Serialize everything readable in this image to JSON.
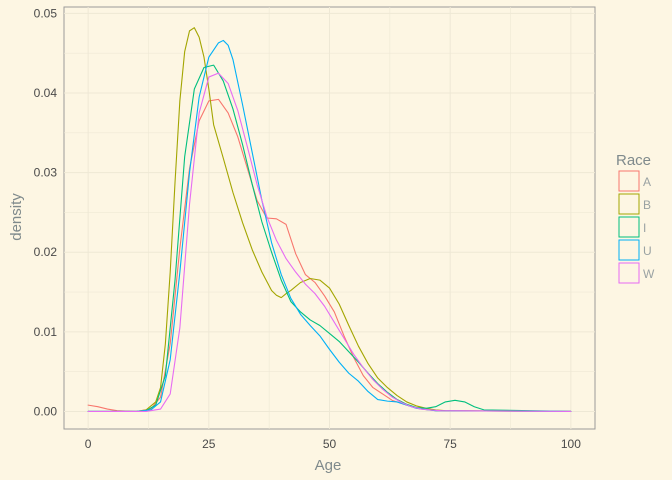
{
  "chart_data": {
    "type": "line",
    "subtype": "density",
    "title": "",
    "xlabel": "Age",
    "ylabel": "density",
    "xlim": [
      -5,
      105
    ],
    "ylim": [
      -0.0022,
      0.0508
    ],
    "x_ticks": [
      0,
      25,
      50,
      75,
      100
    ],
    "x_tick_labels": [
      "0",
      "25",
      "50",
      "75",
      "100"
    ],
    "y_ticks": [
      0,
      0.01,
      0.02,
      0.03,
      0.04,
      0.05
    ],
    "y_tick_labels": [
      "0.00",
      "0.01",
      "0.02",
      "0.03",
      "0.04",
      "0.05"
    ],
    "grid": true,
    "background": "#fdf6e3",
    "grid_color": "#eee8d5",
    "legend": {
      "title": "Race",
      "position": "right"
    },
    "series": [
      {
        "name": "A",
        "color": "#f8766d",
        "x": [
          0,
          2,
          4,
          6,
          10,
          13,
          15,
          17,
          19,
          21,
          23,
          25,
          27,
          29,
          31,
          33,
          35,
          37,
          39,
          41,
          43,
          45,
          47,
          49,
          51,
          53,
          55,
          57,
          59,
          61,
          63,
          66,
          69,
          72,
          100
        ],
        "y": [
          0.0008,
          0.0006,
          0.0003,
          0.0001,
          0,
          0.0003,
          0.0018,
          0.0085,
          0.0205,
          0.0305,
          0.0365,
          0.039,
          0.0392,
          0.0375,
          0.0345,
          0.0305,
          0.0265,
          0.0243,
          0.0242,
          0.0235,
          0.0198,
          0.0172,
          0.0162,
          0.0145,
          0.0125,
          0.0095,
          0.0068,
          0.0045,
          0.003,
          0.0022,
          0.0014,
          0.0008,
          0.0003,
          0.0001,
          0
        ]
      },
      {
        "name": "B",
        "color": "#a3a500",
        "x": [
          0,
          10,
          12,
          14,
          15,
          16,
          17,
          18,
          19,
          20,
          21,
          22,
          23,
          24,
          25,
          26,
          28,
          30,
          32,
          34,
          36,
          38,
          39,
          40,
          41,
          42,
          44,
          46,
          48,
          50,
          52,
          54,
          56,
          58,
          60,
          62,
          64,
          66,
          68,
          70,
          72,
          74,
          100
        ],
        "y": [
          0,
          0,
          0.0002,
          0.0012,
          0.003,
          0.0085,
          0.0175,
          0.0288,
          0.039,
          0.0452,
          0.0478,
          0.0482,
          0.047,
          0.0445,
          0.0405,
          0.036,
          0.0318,
          0.0275,
          0.0237,
          0.0203,
          0.0175,
          0.0152,
          0.0146,
          0.0143,
          0.0148,
          0.0152,
          0.0162,
          0.0167,
          0.0165,
          0.0155,
          0.0135,
          0.0108,
          0.0082,
          0.006,
          0.0042,
          0.003,
          0.002,
          0.0012,
          0.0007,
          0.0004,
          0.0002,
          0.0001,
          0
        ]
      },
      {
        "name": "I",
        "color": "#00bf7d",
        "x": [
          0,
          10,
          12,
          14,
          16,
          18,
          20,
          22,
          24,
          26,
          28,
          30,
          32,
          34,
          36,
          38,
          40,
          42,
          44,
          46,
          48,
          50,
          52,
          54,
          56,
          58,
          60,
          62,
          64,
          66,
          68,
          70,
          72,
          74,
          76,
          78,
          80,
          82,
          100
        ],
        "y": [
          0,
          0,
          0.0001,
          0.0008,
          0.0045,
          0.0165,
          0.032,
          0.0405,
          0.0432,
          0.0435,
          0.0415,
          0.038,
          0.0335,
          0.0285,
          0.0238,
          0.02,
          0.0165,
          0.0138,
          0.0125,
          0.0115,
          0.0108,
          0.0098,
          0.0088,
          0.0075,
          0.0062,
          0.0048,
          0.0035,
          0.0024,
          0.0015,
          0.0009,
          0.0005,
          0.0004,
          0.0006,
          0.0012,
          0.0014,
          0.0012,
          0.0006,
          0.0002,
          0
        ]
      },
      {
        "name": "U",
        "color": "#00b0f6",
        "x": [
          0,
          10,
          13,
          15,
          17,
          19,
          21,
          23,
          25,
          27,
          28,
          29,
          30,
          32,
          34,
          36,
          38,
          40,
          42,
          44,
          46,
          48,
          50,
          52,
          54,
          56,
          58,
          60,
          62,
          64,
          66,
          68,
          72,
          100
        ],
        "y": [
          0,
          0,
          0.0002,
          0.0012,
          0.0065,
          0.0175,
          0.03,
          0.0395,
          0.0445,
          0.0463,
          0.0466,
          0.046,
          0.0442,
          0.0385,
          0.0325,
          0.0265,
          0.0212,
          0.0172,
          0.0142,
          0.0122,
          0.0108,
          0.0095,
          0.0078,
          0.0062,
          0.0048,
          0.0038,
          0.0025,
          0.0015,
          0.0013,
          0.0012,
          0.0008,
          0.0004,
          0.0001,
          0
        ]
      },
      {
        "name": "W",
        "color": "#e76bf3",
        "x": [
          0,
          12,
          15,
          17,
          19,
          21,
          23,
          25,
          27,
          29,
          31,
          33,
          35,
          37,
          39,
          41,
          43,
          45,
          47,
          49,
          51,
          53,
          55,
          57,
          59,
          61,
          63,
          65,
          67,
          69,
          71,
          73,
          100
        ],
        "y": [
          0,
          0,
          0.0003,
          0.0022,
          0.0105,
          0.026,
          0.0375,
          0.042,
          0.0425,
          0.0412,
          0.0378,
          0.0332,
          0.0285,
          0.0245,
          0.0215,
          0.0192,
          0.0175,
          0.016,
          0.0148,
          0.0132,
          0.0112,
          0.0092,
          0.0072,
          0.0055,
          0.004,
          0.0028,
          0.0018,
          0.0011,
          0.0006,
          0.0003,
          0.0002,
          0.0001,
          0
        ]
      }
    ]
  }
}
